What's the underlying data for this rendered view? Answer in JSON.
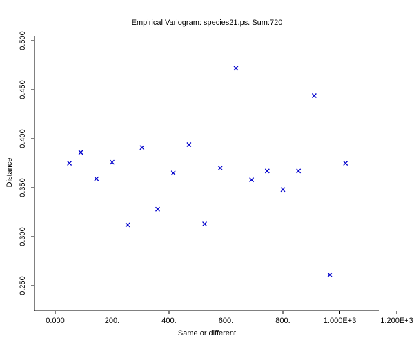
{
  "chart_data": {
    "type": "scatter",
    "title": "Empirical Variogram: species21.ps. Sum:720",
    "xlabel": "Same or different",
    "ylabel": "Distance",
    "xlim": [
      -70,
      1200
    ],
    "ylim": [
      0.225,
      0.51
    ],
    "xticks": [
      {
        "value": 0,
        "label": "0.000"
      },
      {
        "value": 200,
        "label": "200."
      },
      {
        "value": 400,
        "label": "400."
      },
      {
        "value": 600,
        "label": "600."
      },
      {
        "value": 800,
        "label": "800."
      },
      {
        "value": 1000,
        "label": "1.000E+3"
      },
      {
        "value": 1200,
        "label": "1.200E+3"
      }
    ],
    "yticks": [
      {
        "value": 0.25,
        "label": "0.250"
      },
      {
        "value": 0.3,
        "label": "0.300"
      },
      {
        "value": 0.35,
        "label": "0.350"
      },
      {
        "value": 0.4,
        "label": "0.400"
      },
      {
        "value": 0.45,
        "label": "0.450"
      },
      {
        "value": 0.5,
        "label": "0.500"
      }
    ],
    "grid": false,
    "marker": "x",
    "marker_color": "#0000cc",
    "x": [
      50,
      90,
      145,
      200,
      255,
      305,
      360,
      415,
      470,
      525,
      580,
      635,
      690,
      745,
      800,
      855,
      910,
      965,
      1020
    ],
    "y": [
      0.375,
      0.386,
      0.359,
      0.376,
      0.312,
      0.391,
      0.328,
      0.365,
      0.394,
      0.313,
      0.37,
      0.472,
      0.358,
      0.367,
      0.348,
      0.367,
      0.444,
      0.261,
      0.375
    ]
  }
}
